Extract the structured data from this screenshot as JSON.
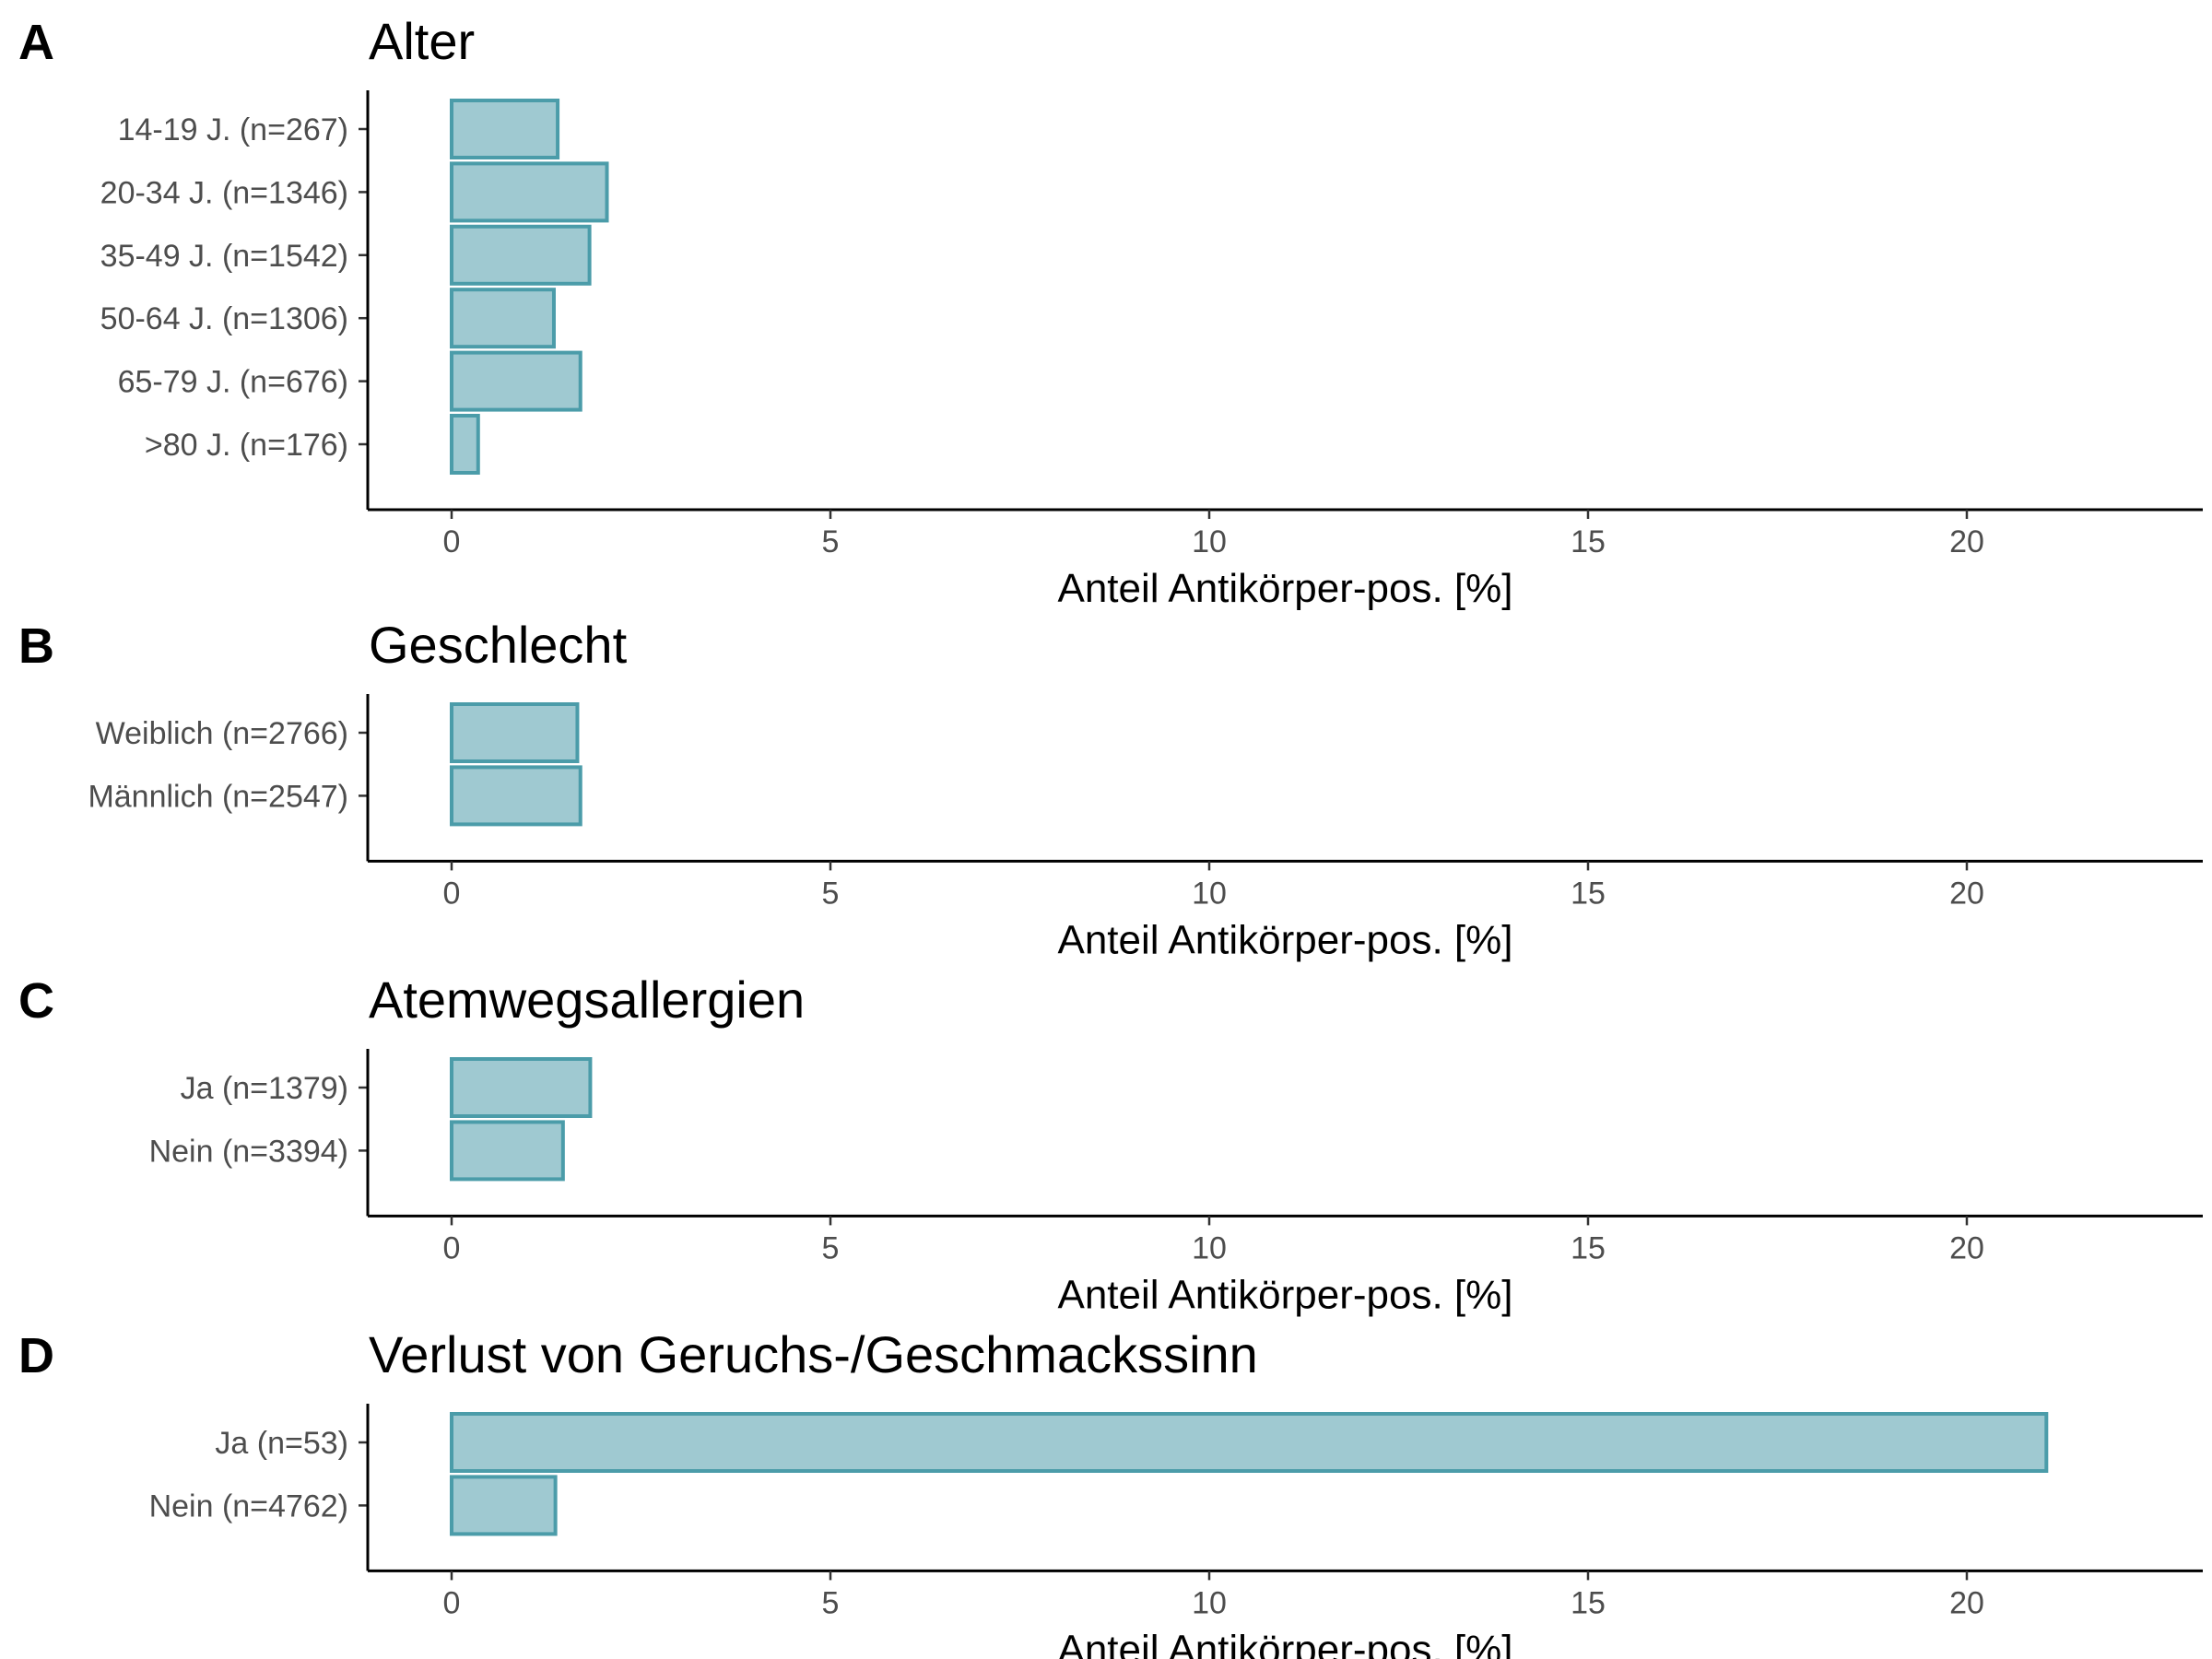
{
  "chart_data": [
    {
      "type": "bar",
      "orientation": "horizontal",
      "panel": "A",
      "title": "Alter",
      "xlabel": "Anteil Antikörper-pos. [%]",
      "ylabel": "",
      "xlim": [
        -1.1,
        23
      ],
      "xticks": [
        0,
        5,
        10,
        15,
        20
      ],
      "categories": [
        "14-19 J. (n=267)",
        "20-34 J. (n=1346)",
        "35-49 J. (n=1542)",
        "50-64 J. (n=1306)",
        "65-79 J. (n=676)",
        ">80 J. (n=176)"
      ],
      "values": [
        1.4,
        2.05,
        1.82,
        1.35,
        1.7,
        0.35
      ]
    },
    {
      "type": "bar",
      "orientation": "horizontal",
      "panel": "B",
      "title": "Geschlecht",
      "xlabel": "Anteil Antikörper-pos. [%]",
      "ylabel": "",
      "xlim": [
        -1.1,
        23
      ],
      "xticks": [
        0,
        5,
        10,
        15,
        20
      ],
      "categories": [
        "Weiblich (n=2766)",
        "Männlich (n=2547)"
      ],
      "values": [
        1.66,
        1.7
      ]
    },
    {
      "type": "bar",
      "orientation": "horizontal",
      "panel": "C",
      "title": "Atemwegsallergien",
      "xlabel": "Anteil Antikörper-pos. [%]",
      "ylabel": "",
      "xlim": [
        -1.1,
        23
      ],
      "xticks": [
        0,
        5,
        10,
        15,
        20
      ],
      "categories": [
        "Ja (n=1379)",
        "Nein (n=3394)"
      ],
      "values": [
        1.83,
        1.47
      ]
    },
    {
      "type": "bar",
      "orientation": "horizontal",
      "panel": "D",
      "title": "Verlust von Geruchs-/Geschmackssinn",
      "xlabel": "Anteil Antikörper-pos. [%]",
      "ylabel": "",
      "xlim": [
        -1.1,
        23
      ],
      "xticks": [
        0,
        5,
        10,
        15,
        20
      ],
      "categories": [
        "Ja (n=53)",
        "Nein (n=4762)"
      ],
      "values": [
        21.05,
        1.37
      ]
    }
  ],
  "colors": {
    "bar_fill": "#9fc9d1",
    "bar_stroke": "#4b9ca9"
  }
}
